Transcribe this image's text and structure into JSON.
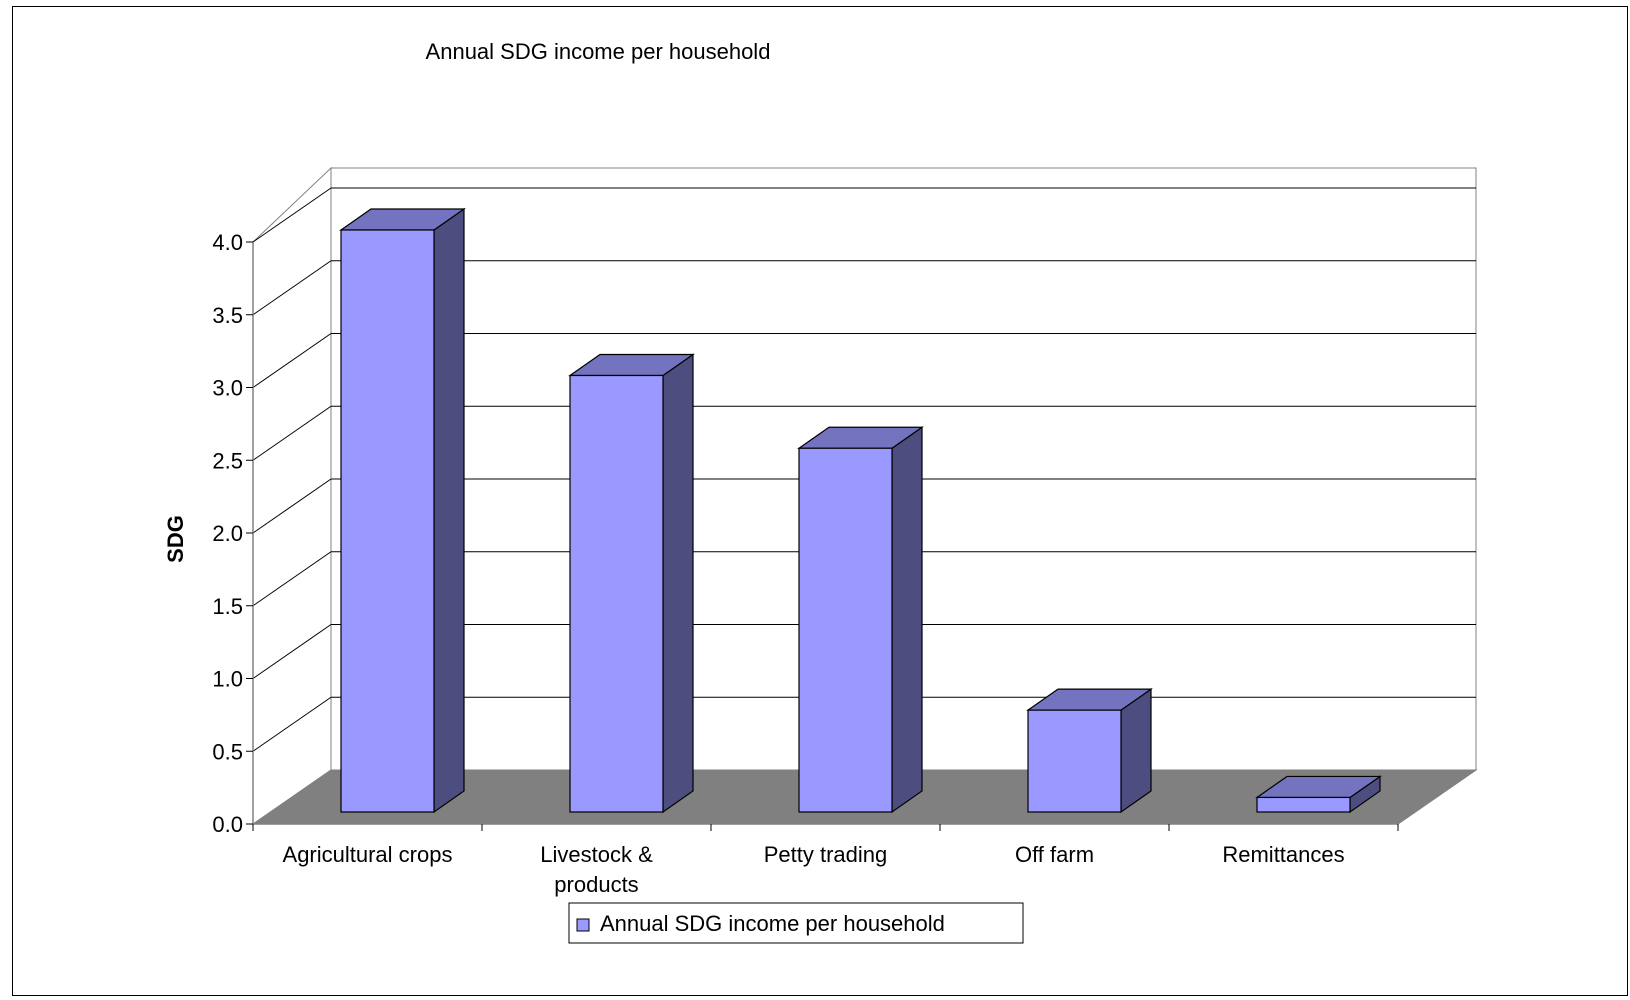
{
  "chart_data": {
    "type": "bar",
    "title": "Annual SDG income per household",
    "xlabel": "",
    "ylabel": "SDG",
    "categories": [
      "Agricultural crops",
      "Livestock & products",
      "Petty trading",
      "Off farm",
      "Remittances"
    ],
    "category_lines": [
      [
        "Agricultural crops"
      ],
      [
        "Livestock &",
        "products"
      ],
      [
        "Petty trading"
      ],
      [
        "Off farm"
      ],
      [
        "Remittances"
      ]
    ],
    "series": [
      {
        "name": "Annual SDG income per household",
        "values": [
          4.0,
          3.0,
          2.5,
          0.7,
          0.1
        ]
      }
    ],
    "yticks": [
      "0.0",
      "0.5",
      "1.0",
      "1.5",
      "2.0",
      "2.5",
      "3.0",
      "3.5",
      "4.0"
    ],
    "ylim": [
      0,
      4.0
    ],
    "grid": true,
    "legend_position": "bottom",
    "style": "3d",
    "colors": {
      "bar_front": "#9999ff",
      "bar_side": "#4d4d80",
      "bar_top": "#7373bf",
      "floor": "#808080",
      "grid": "#000000",
      "axis": "#808080"
    }
  }
}
